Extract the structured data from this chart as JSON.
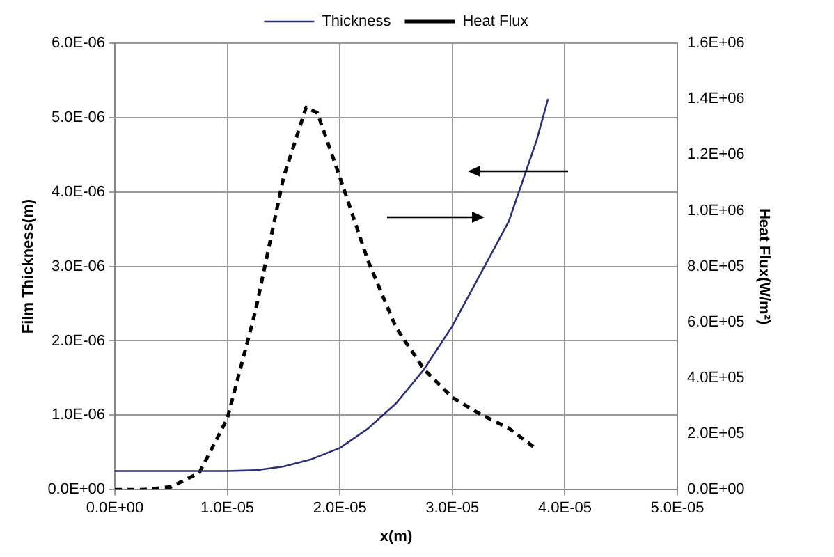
{
  "chart_data": {
    "type": "line",
    "xlabel": "x(m)",
    "ylabel": "Film Thickness(m)",
    "y2label": "Heat Flux(W/m²)",
    "xlim": [
      0,
      5e-05
    ],
    "xticks": [
      {
        "value": 0,
        "label": "0.0E+00"
      },
      {
        "value": 1e-05,
        "label": "1.0E-05"
      },
      {
        "value": 2e-05,
        "label": "2.0E-05"
      },
      {
        "value": 3e-05,
        "label": "3.0E-05"
      },
      {
        "value": 4e-05,
        "label": "4.0E-05"
      },
      {
        "value": 5e-05,
        "label": "5.0E-05"
      }
    ],
    "ylim": [
      0,
      6e-06
    ],
    "yticks": [
      {
        "value": 0,
        "label": "0.0E+00"
      },
      {
        "value": 1e-06,
        "label": "1.0E-06"
      },
      {
        "value": 2e-06,
        "label": "2.0E-06"
      },
      {
        "value": 3e-06,
        "label": "3.0E-06"
      },
      {
        "value": 4e-06,
        "label": "4.0E-06"
      },
      {
        "value": 5e-06,
        "label": "5.0E-06"
      },
      {
        "value": 6e-06,
        "label": "6.0E-06"
      }
    ],
    "y2lim": [
      0,
      1600000.0
    ],
    "y2ticks": [
      {
        "value": 0,
        "label": "0.0E+00"
      },
      {
        "value": 200000.0,
        "label": "2.0E+05"
      },
      {
        "value": 400000.0,
        "label": "4.0E+05"
      },
      {
        "value": 600000.0,
        "label": "6.0E+05"
      },
      {
        "value": 800000.0,
        "label": "8.0E+05"
      },
      {
        "value": 1000000.0,
        "label": "1.0E+06"
      },
      {
        "value": 1200000.0,
        "label": "1.2E+06"
      },
      {
        "value": 1400000.0,
        "label": "1.4E+06"
      },
      {
        "value": 1600000.0,
        "label": "1.6E+06"
      }
    ],
    "grid": true,
    "legend": "top",
    "marker": "none",
    "series": [
      {
        "name": "Thickness",
        "color": "#2b2f7a",
        "line_style": "solid",
        "x": [
          0,
          5e-06,
          1e-05,
          1.25e-05,
          1.5e-05,
          1.75e-05,
          2e-05,
          2.25e-05,
          2.5e-05,
          2.75e-05,
          3e-05,
          3.25e-05,
          3.5e-05,
          3.75e-05,
          3.85e-05
        ],
        "values": [
          2.5e-07,
          2.5e-07,
          2.5e-07,
          2.6e-07,
          3.1e-07,
          4.1e-07,
          5.6e-07,
          8.2e-07,
          1.16e-06,
          1.62e-06,
          2.2e-06,
          2.9e-06,
          3.6e-06,
          4.7e-06,
          5.25e-06
        ]
      },
      {
        "name": "Heat Flux",
        "color": "#000000",
        "line_style": "dashed",
        "axis": "y2",
        "x": [
          0,
          2.5e-06,
          5e-06,
          7.5e-06,
          1e-05,
          1.25e-05,
          1.5e-05,
          1.7e-05,
          1.8e-05,
          2e-05,
          2.25e-05,
          2.5e-05,
          2.75e-05,
          3e-05,
          3.25e-05,
          3.5e-05,
          3.75e-05
        ],
        "values": [
          0,
          0,
          10000.0,
          60000.0,
          255000.0,
          640000.0,
          1120000.0,
          1370000.0,
          1350000.0,
          1120000.0,
          820000.0,
          580000.0,
          430000.0,
          330000.0,
          270000.0,
          220000.0,
          145000.0
        ]
      }
    ]
  }
}
